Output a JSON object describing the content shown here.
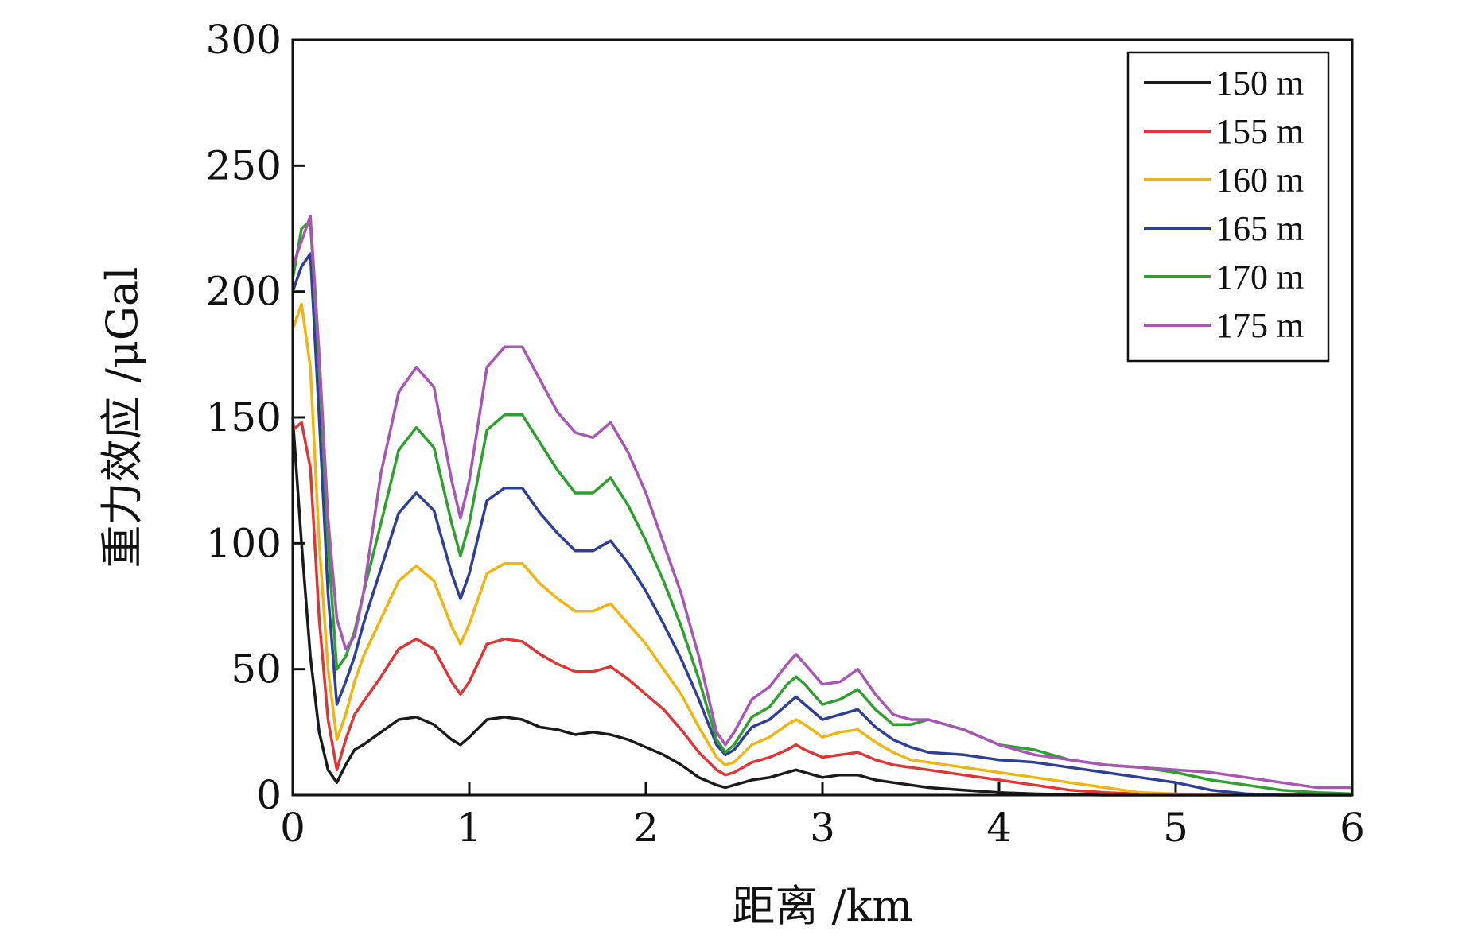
{
  "chart_data": {
    "type": "line",
    "title": "",
    "xlabel": "距离 /km",
    "ylabel": "重力效应 /μGal",
    "xlim": [
      0,
      6
    ],
    "ylim": [
      0,
      300
    ],
    "xticks": [
      "0",
      "1",
      "2",
      "3",
      "4",
      "5",
      "6"
    ],
    "yticks": [
      "0",
      "50",
      "100",
      "150",
      "200",
      "250",
      "300"
    ],
    "grid": false,
    "legend_position": "top-right",
    "x": [
      0,
      0.05,
      0.1,
      0.15,
      0.2,
      0.25,
      0.3,
      0.35,
      0.4,
      0.5,
      0.6,
      0.7,
      0.8,
      0.9,
      0.95,
      1.0,
      1.1,
      1.2,
      1.3,
      1.4,
      1.5,
      1.6,
      1.7,
      1.8,
      1.9,
      2.0,
      2.1,
      2.2,
      2.3,
      2.4,
      2.45,
      2.5,
      2.6,
      2.7,
      2.8,
      2.85,
      2.9,
      3.0,
      3.1,
      3.2,
      3.3,
      3.4,
      3.5,
      3.6,
      3.8,
      4.0,
      4.2,
      4.4,
      4.6,
      4.8,
      5.0,
      5.2,
      5.4,
      5.6,
      5.8,
      6.0
    ],
    "series": [
      {
        "name": "150 m",
        "color": "#1a1a1a",
        "values": [
          150,
          100,
          55,
          25,
          10,
          5,
          12,
          18,
          20,
          25,
          30,
          31,
          28,
          22,
          20,
          23,
          30,
          31,
          30,
          27,
          26,
          24,
          25,
          24,
          22,
          19,
          16,
          12,
          7,
          4,
          3,
          4,
          6,
          7,
          9,
          10,
          9,
          7,
          8,
          8,
          6,
          5,
          4,
          3,
          2,
          1,
          0.5,
          0.2,
          0,
          0,
          0,
          0,
          0,
          0,
          0,
          0
        ]
      },
      {
        "name": "155 m",
        "color": "#e03535",
        "values": [
          145,
          148,
          130,
          70,
          30,
          10,
          22,
          32,
          37,
          47,
          58,
          62,
          58,
          45,
          40,
          45,
          60,
          62,
          61,
          56,
          52,
          49,
          49,
          51,
          46,
          40,
          34,
          26,
          17,
          10,
          8,
          9,
          13,
          15,
          18,
          20,
          18,
          15,
          16,
          17,
          14,
          12,
          11,
          10,
          8,
          6,
          4,
          2,
          1,
          0.5,
          0,
          0,
          0,
          0,
          0,
          0
        ]
      },
      {
        "name": "160 m",
        "color": "#f2b50f",
        "values": [
          185,
          195,
          170,
          100,
          50,
          22,
          32,
          45,
          55,
          70,
          85,
          91,
          85,
          67,
          60,
          68,
          88,
          92,
          92,
          84,
          78,
          73,
          73,
          76,
          68,
          60,
          50,
          40,
          27,
          15,
          12,
          13,
          20,
          23,
          28,
          30,
          28,
          23,
          25,
          26,
          21,
          17,
          14,
          13,
          11,
          9,
          7,
          5,
          3,
          1,
          0.5,
          0,
          0,
          0,
          0,
          0
        ]
      },
      {
        "name": "165 m",
        "color": "#2e3f99",
        "values": [
          200,
          210,
          215,
          150,
          80,
          36,
          45,
          55,
          68,
          90,
          112,
          120,
          113,
          88,
          78,
          88,
          117,
          122,
          122,
          112,
          104,
          97,
          97,
          101,
          92,
          81,
          68,
          54,
          38,
          20,
          16,
          18,
          27,
          30,
          36,
          39,
          36,
          30,
          32,
          34,
          27,
          22,
          19,
          17,
          16,
          14,
          13,
          11,
          9,
          7,
          5,
          2,
          0.5,
          0,
          0,
          0
        ]
      },
      {
        "name": "170 m",
        "color": "#2ea02e",
        "values": [
          205,
          225,
          228,
          170,
          100,
          50,
          55,
          65,
          80,
          108,
          137,
          146,
          138,
          108,
          95,
          108,
          145,
          151,
          151,
          140,
          129,
          120,
          120,
          126,
          115,
          101,
          85,
          67,
          46,
          22,
          17,
          20,
          31,
          35,
          44,
          47,
          44,
          36,
          38,
          42,
          34,
          28,
          28,
          30,
          26,
          20,
          18,
          14,
          12,
          11,
          9,
          6,
          4,
          2,
          1,
          0.5
        ]
      },
      {
        "name": "175 m",
        "color": "#a855b5",
        "values": [
          210,
          220,
          230,
          175,
          110,
          70,
          58,
          63,
          80,
          128,
          160,
          170,
          162,
          125,
          110,
          125,
          170,
          178,
          178,
          165,
          152,
          144,
          142,
          148,
          136,
          120,
          100,
          80,
          55,
          25,
          20,
          25,
          38,
          43,
          52,
          56,
          52,
          44,
          45,
          50,
          40,
          32,
          30,
          30,
          26,
          20,
          16,
          14,
          12,
          11,
          10,
          9,
          7,
          5,
          3,
          3
        ]
      }
    ]
  }
}
